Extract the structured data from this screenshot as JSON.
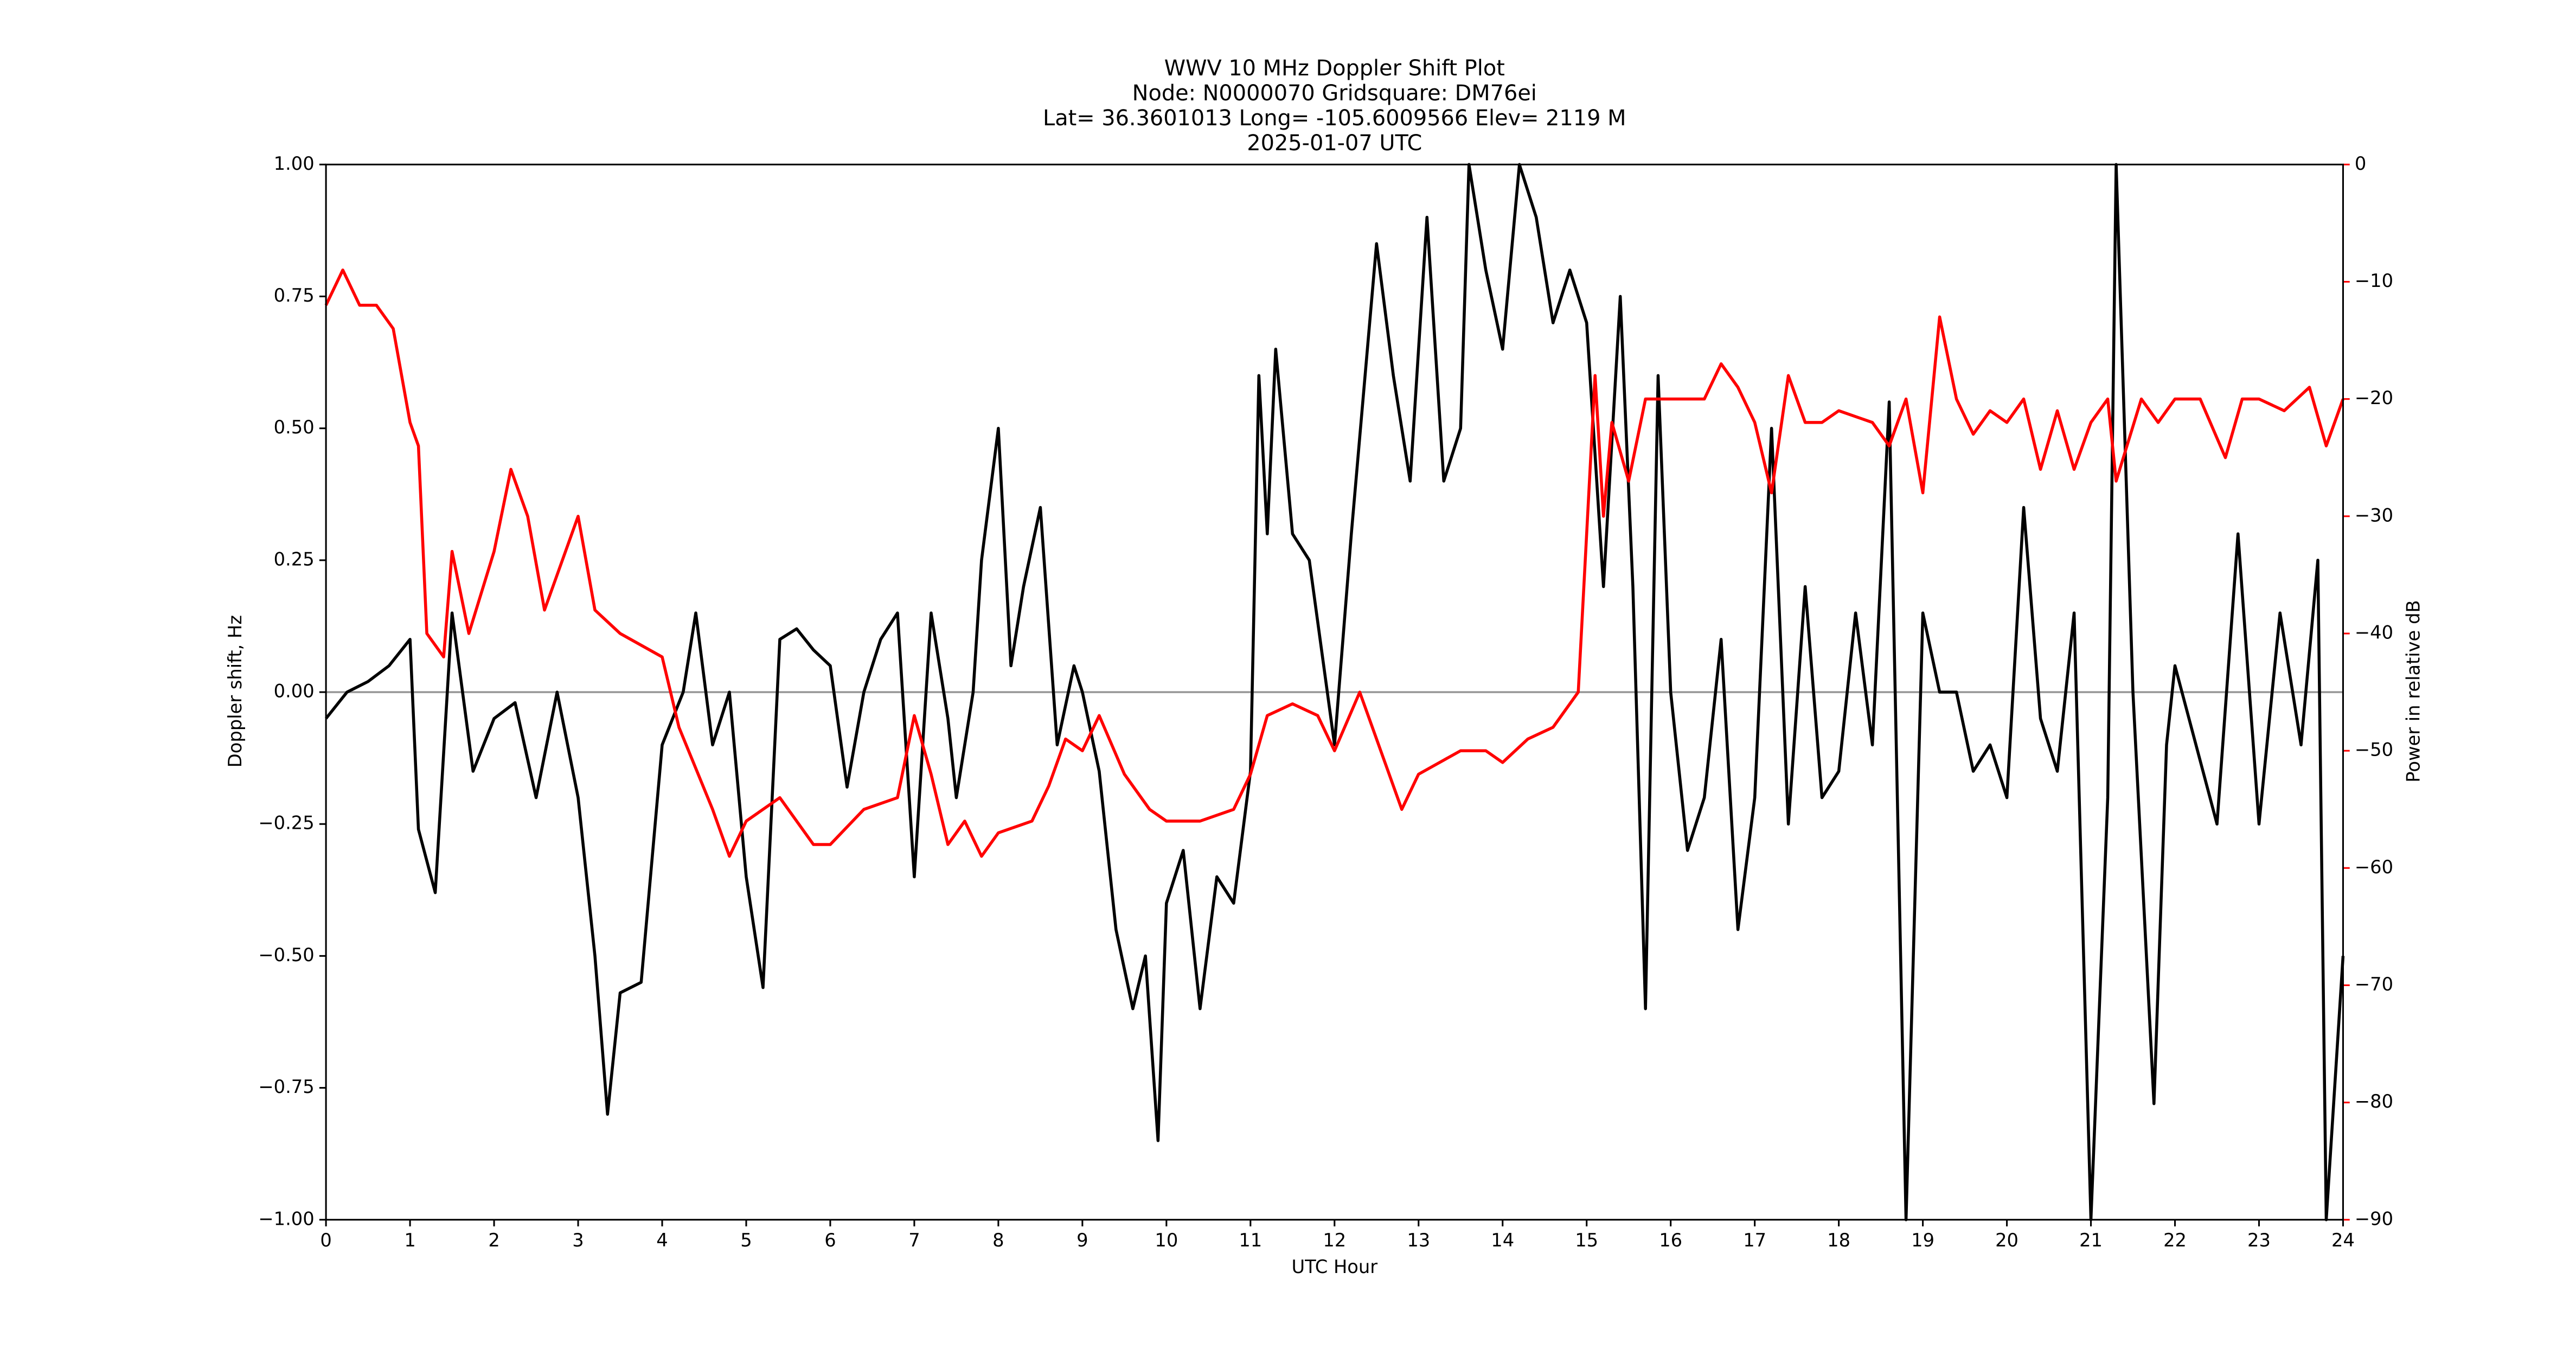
{
  "chart_data": {
    "type": "line",
    "title": [
      "WWV 10 MHz Doppler Shift Plot",
      "Node:  N0000070     Gridsquare:  DM76ei",
      "Lat= 36.3601013    Long= -105.6009566    Elev= 2119 M",
      "2025-01-07  UTC"
    ],
    "xlabel": "UTC Hour",
    "ylabel": "Doppler shift, Hz",
    "y2label": "Power in relative dB",
    "xlim": [
      0,
      24
    ],
    "xticks": [
      0,
      1,
      2,
      3,
      4,
      5,
      6,
      7,
      8,
      9,
      10,
      11,
      12,
      13,
      14,
      15,
      16,
      17,
      18,
      19,
      20,
      21,
      22,
      23,
      24
    ],
    "ylim": [
      -1,
      1
    ],
    "yticks": [
      {
        "value": -1,
        "label": "−1.00"
      },
      {
        "value": -0.75,
        "label": "−0.75"
      },
      {
        "value": -0.5,
        "label": "−0.50"
      },
      {
        "value": -0.25,
        "label": "−0.25"
      },
      {
        "value": 0,
        "label": "0.00"
      },
      {
        "value": 0.25,
        "label": "0.25"
      },
      {
        "value": 0.5,
        "label": "0.50"
      },
      {
        "value": 0.75,
        "label": "0.75"
      },
      {
        "value": 1,
        "label": "1.00"
      }
    ],
    "y2lim": [
      -90,
      0
    ],
    "y2ticks": [
      {
        "value": -90,
        "label": "−90"
      },
      {
        "value": -80,
        "label": "−80"
      },
      {
        "value": -70,
        "label": "−70"
      },
      {
        "value": -60,
        "label": "−60"
      },
      {
        "value": -50,
        "label": "−50"
      },
      {
        "value": -40,
        "label": "−40"
      },
      {
        "value": -30,
        "label": "−30"
      },
      {
        "value": -20,
        "label": "−20"
      },
      {
        "value": -10,
        "label": "−10"
      },
      0
    ],
    "y2color": "#ff0000",
    "hline": 0,
    "series": [
      {
        "color": "#000000",
        "axis": "y",
        "x": [
          0,
          0.25,
          0.5,
          0.75,
          1.0,
          1.1,
          1.3,
          1.5,
          1.75,
          2.0,
          2.25,
          2.5,
          2.75,
          3.0,
          3.2,
          3.35,
          3.5,
          3.75,
          4.0,
          4.25,
          4.4,
          4.6,
          4.8,
          5.0,
          5.2,
          5.4,
          5.6,
          5.8,
          6.0,
          6.2,
          6.4,
          6.6,
          6.8,
          7.0,
          7.2,
          7.4,
          7.5,
          7.7,
          7.8,
          8.0,
          8.15,
          8.3,
          8.5,
          8.7,
          8.9,
          9.0,
          9.2,
          9.4,
          9.6,
          9.75,
          9.9,
          10.0,
          10.2,
          10.4,
          10.6,
          10.8,
          11.0,
          11.1,
          11.2,
          11.3,
          11.5,
          11.7,
          12.0,
          12.2,
          12.5,
          12.7,
          12.9,
          13.1,
          13.3,
          13.5,
          13.6,
          13.8,
          14.0,
          14.2,
          14.4,
          14.6,
          14.8,
          15.0,
          15.2,
          15.4,
          15.55,
          15.7,
          15.85,
          16.0,
          16.2,
          16.4,
          16.6,
          16.8,
          17.0,
          17.2,
          17.4,
          17.6,
          17.8,
          18.0,
          18.2,
          18.4,
          18.6,
          18.8,
          19.0,
          19.2,
          19.4,
          19.6,
          19.8,
          20.0,
          20.2,
          20.4,
          20.6,
          20.8,
          21.0,
          21.2,
          21.3,
          21.5,
          21.75,
          21.9,
          22.0,
          22.25,
          22.5,
          22.75,
          23.0,
          23.25,
          23.5,
          23.7,
          23.8,
          24.0
        ],
        "values": [
          -0.05,
          0.0,
          0.02,
          0.05,
          0.1,
          -0.26,
          -0.38,
          0.15,
          -0.15,
          -0.05,
          -0.02,
          -0.2,
          0.0,
          -0.2,
          -0.5,
          -0.8,
          -0.57,
          -0.55,
          -0.1,
          0.0,
          0.15,
          -0.1,
          0.0,
          -0.35,
          -0.56,
          0.1,
          0.12,
          0.08,
          0.05,
          -0.18,
          0.0,
          0.1,
          0.15,
          -0.35,
          0.15,
          -0.05,
          -0.2,
          0.0,
          0.25,
          0.5,
          0.05,
          0.2,
          0.35,
          -0.1,
          0.05,
          0.0,
          -0.15,
          -0.45,
          -0.6,
          -0.5,
          -0.85,
          -0.4,
          -0.3,
          -0.6,
          -0.35,
          -0.4,
          -0.15,
          0.6,
          0.3,
          0.65,
          0.3,
          0.25,
          -0.1,
          0.3,
          0.85,
          0.6,
          0.4,
          0.9,
          0.4,
          0.5,
          1.0,
          0.8,
          0.65,
          1.0,
          0.9,
          0.7,
          0.8,
          0.7,
          0.2,
          0.75,
          0.2,
          -0.6,
          0.6,
          0.0,
          -0.3,
          -0.2,
          0.1,
          -0.45,
          -0.2,
          0.5,
          -0.25,
          0.2,
          -0.2,
          -0.15,
          0.15,
          -0.1,
          0.55,
          -1.0,
          0.15,
          0.0,
          0.0,
          -0.15,
          -0.1,
          -0.2,
          0.35,
          -0.05,
          -0.15,
          0.15,
          -1.0,
          -0.2,
          1.0,
          0.0,
          -0.78,
          -0.1,
          0.05,
          -0.1,
          -0.25,
          0.3,
          -0.25,
          0.15,
          -0.1,
          0.25,
          -1.0,
          -0.5
        ]
      },
      {
        "color": "#ff0000",
        "axis": "y2",
        "x": [
          0,
          0.2,
          0.4,
          0.6,
          0.8,
          1.0,
          1.1,
          1.2,
          1.4,
          1.5,
          1.7,
          2.0,
          2.2,
          2.4,
          2.6,
          3.0,
          3.2,
          3.5,
          4.0,
          4.2,
          4.6,
          4.8,
          5.0,
          5.4,
          5.8,
          6.0,
          6.4,
          6.8,
          7.0,
          7.2,
          7.4,
          7.6,
          7.8,
          8.0,
          8.4,
          8.6,
          8.8,
          9.0,
          9.2,
          9.5,
          9.8,
          10.0,
          10.4,
          10.8,
          11.0,
          11.2,
          11.5,
          11.8,
          12.0,
          12.3,
          12.6,
          12.8,
          13.0,
          13.5,
          13.8,
          14.0,
          14.3,
          14.6,
          14.9,
          15.1,
          15.2,
          15.3,
          15.5,
          15.7,
          16.0,
          16.4,
          16.6,
          16.8,
          17.0,
          17.2,
          17.4,
          17.6,
          17.8,
          18.0,
          18.4,
          18.6,
          18.8,
          19.0,
          19.2,
          19.4,
          19.6,
          19.8,
          20.0,
          20.2,
          20.4,
          20.6,
          20.8,
          21.0,
          21.2,
          21.3,
          21.6,
          21.8,
          22.0,
          22.3,
          22.6,
          22.8,
          23.0,
          23.3,
          23.6,
          23.8,
          24.0
        ],
        "values": [
          -12,
          -9,
          -12,
          -12,
          -14,
          -22,
          -24,
          -40,
          -42,
          -33,
          -40,
          -33,
          -26,
          -30,
          -38,
          -30,
          -38,
          -40,
          -42,
          -48,
          -55,
          -59,
          -56,
          -54,
          -58,
          -58,
          -55,
          -54,
          -47,
          -52,
          -58,
          -56,
          -59,
          -57,
          -56,
          -53,
          -49,
          -50,
          -47,
          -52,
          -55,
          -56,
          -56,
          -55,
          -52,
          -47,
          -46,
          -47,
          -50,
          -45,
          -51,
          -55,
          -52,
          -50,
          -50,
          -51,
          -49,
          -48,
          -45,
          -18,
          -30,
          -22,
          -27,
          -20,
          -20,
          -20,
          -17,
          -19,
          -22,
          -28,
          -18,
          -22,
          -22,
          -21,
          -22,
          -24,
          -20,
          -28,
          -13,
          -20,
          -23,
          -21,
          -22,
          -20,
          -26,
          -21,
          -26,
          -22,
          -20,
          -27,
          -20,
          -22,
          -20,
          -20,
          -25,
          -20,
          -20,
          -21,
          -19,
          -24,
          -20
        ]
      }
    ]
  }
}
